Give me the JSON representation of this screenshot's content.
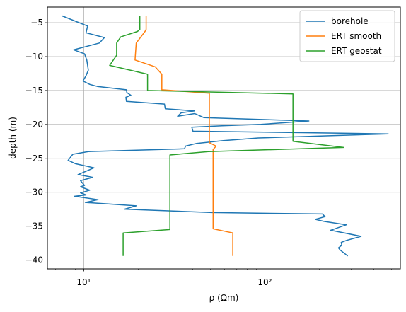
{
  "chart_data": {
    "type": "line",
    "xlabel": "ρ (Ωm)",
    "ylabel": "depth (m)",
    "x_scale": "log",
    "xlim": [
      6.3,
      560
    ],
    "ylim": [
      -41.3,
      -2.7
    ],
    "x_major_ticks": [
      10,
      100
    ],
    "x_tick_labels": [
      "10¹",
      "10²"
    ],
    "y_ticks": [
      -5,
      -10,
      -15,
      -20,
      -25,
      -30,
      -35,
      -40
    ],
    "y_tick_labels": [
      "−5",
      "−10",
      "−15",
      "−20",
      "−25",
      "−30",
      "−35",
      "−40"
    ],
    "grid": true,
    "legend_position": "top-right",
    "series": [
      {
        "name": "borehole",
        "color": "#1f77b4",
        "points": [
          [
            7.6,
            -4.0
          ],
          [
            10.5,
            -5.5
          ],
          [
            10.3,
            -6.5
          ],
          [
            13.0,
            -7.2
          ],
          [
            12.2,
            -8.0
          ],
          [
            8.8,
            -9.0
          ],
          [
            10.1,
            -9.6
          ],
          [
            10.4,
            -10.5
          ],
          [
            10.6,
            -12.0
          ],
          [
            10.3,
            -12.8
          ],
          [
            9.9,
            -13.6
          ],
          [
            10.8,
            -14.1
          ],
          [
            11.9,
            -14.4
          ],
          [
            17.2,
            -14.9
          ],
          [
            17.3,
            -15.3
          ],
          [
            18.2,
            -15.7
          ],
          [
            17.1,
            -16.0
          ],
          [
            17.2,
            -16.6
          ],
          [
            27.9,
            -17.0
          ],
          [
            28.2,
            -17.7
          ],
          [
            41.0,
            -18.0
          ],
          [
            34.5,
            -18.3
          ],
          [
            33.0,
            -18.8
          ],
          [
            41.0,
            -18.4
          ],
          [
            46.0,
            -19.0
          ],
          [
            175.0,
            -19.5
          ],
          [
            95.0,
            -20.0
          ],
          [
            58.0,
            -20.2
          ],
          [
            39.5,
            -20.4
          ],
          [
            40.1,
            -21.0
          ],
          [
            480.0,
            -21.4
          ],
          [
            92.0,
            -22.0
          ],
          [
            59.0,
            -22.4
          ],
          [
            42.0,
            -22.8
          ],
          [
            36.5,
            -23.2
          ],
          [
            36.0,
            -23.6
          ],
          [
            10.6,
            -24.0
          ],
          [
            8.7,
            -24.4
          ],
          [
            8.2,
            -25.3
          ],
          [
            9.0,
            -25.8
          ],
          [
            11.4,
            -26.4
          ],
          [
            9.3,
            -27.4
          ],
          [
            11.2,
            -27.8
          ],
          [
            9.6,
            -28.3
          ],
          [
            10.1,
            -29.0
          ],
          [
            9.6,
            -29.2
          ],
          [
            10.8,
            -29.7
          ],
          [
            9.6,
            -30.1
          ],
          [
            10.3,
            -30.4
          ],
          [
            8.9,
            -30.6
          ],
          [
            12.0,
            -31.1
          ],
          [
            10.2,
            -31.5
          ],
          [
            19.5,
            -32.0
          ],
          [
            16.8,
            -32.5
          ],
          [
            51.0,
            -33.0
          ],
          [
            208.0,
            -33.2
          ],
          [
            215.0,
            -33.6
          ],
          [
            190.0,
            -34.0
          ],
          [
            212.0,
            -34.3
          ],
          [
            282.0,
            -34.8
          ],
          [
            231.0,
            -35.6
          ],
          [
            340.0,
            -36.5
          ],
          [
            283.0,
            -37.1
          ],
          [
            264.0,
            -37.4
          ],
          [
            266.0,
            -37.8
          ],
          [
            255.0,
            -38.2
          ],
          [
            260.0,
            -38.5
          ],
          [
            287.0,
            -39.4
          ]
        ]
      },
      {
        "name": "ERT smooth",
        "color": "#ff7f0e",
        "points": [
          [
            22.1,
            -4.0
          ],
          [
            22.1,
            -6.0
          ],
          [
            21.8,
            -6.3
          ],
          [
            19.5,
            -8.0
          ],
          [
            19.2,
            -10.5
          ],
          [
            24.8,
            -11.5
          ],
          [
            27.0,
            -12.6
          ],
          [
            27.0,
            -14.9
          ],
          [
            49.4,
            -15.4
          ],
          [
            49.4,
            -22.7
          ],
          [
            53.8,
            -23.2
          ],
          [
            51.8,
            -23.7
          ],
          [
            51.8,
            -35.4
          ],
          [
            66.5,
            -36.0
          ],
          [
            66.5,
            -39.4
          ]
        ]
      },
      {
        "name": "ERT geostat",
        "color": "#2ca02c",
        "points": [
          [
            20.4,
            -4.0
          ],
          [
            20.4,
            -6.0
          ],
          [
            19.8,
            -6.3
          ],
          [
            16.0,
            -7.1
          ],
          [
            15.2,
            -8.0
          ],
          [
            15.2,
            -9.8
          ],
          [
            13.9,
            -11.3
          ],
          [
            22.5,
            -12.6
          ],
          [
            22.5,
            -15.0
          ],
          [
            143.0,
            -15.5
          ],
          [
            143.0,
            -22.5
          ],
          [
            272.0,
            -23.4
          ],
          [
            48.8,
            -24.0
          ],
          [
            29.9,
            -24.5
          ],
          [
            29.9,
            -35.5
          ],
          [
            16.5,
            -36.0
          ],
          [
            16.5,
            -39.4
          ]
        ]
      }
    ]
  }
}
